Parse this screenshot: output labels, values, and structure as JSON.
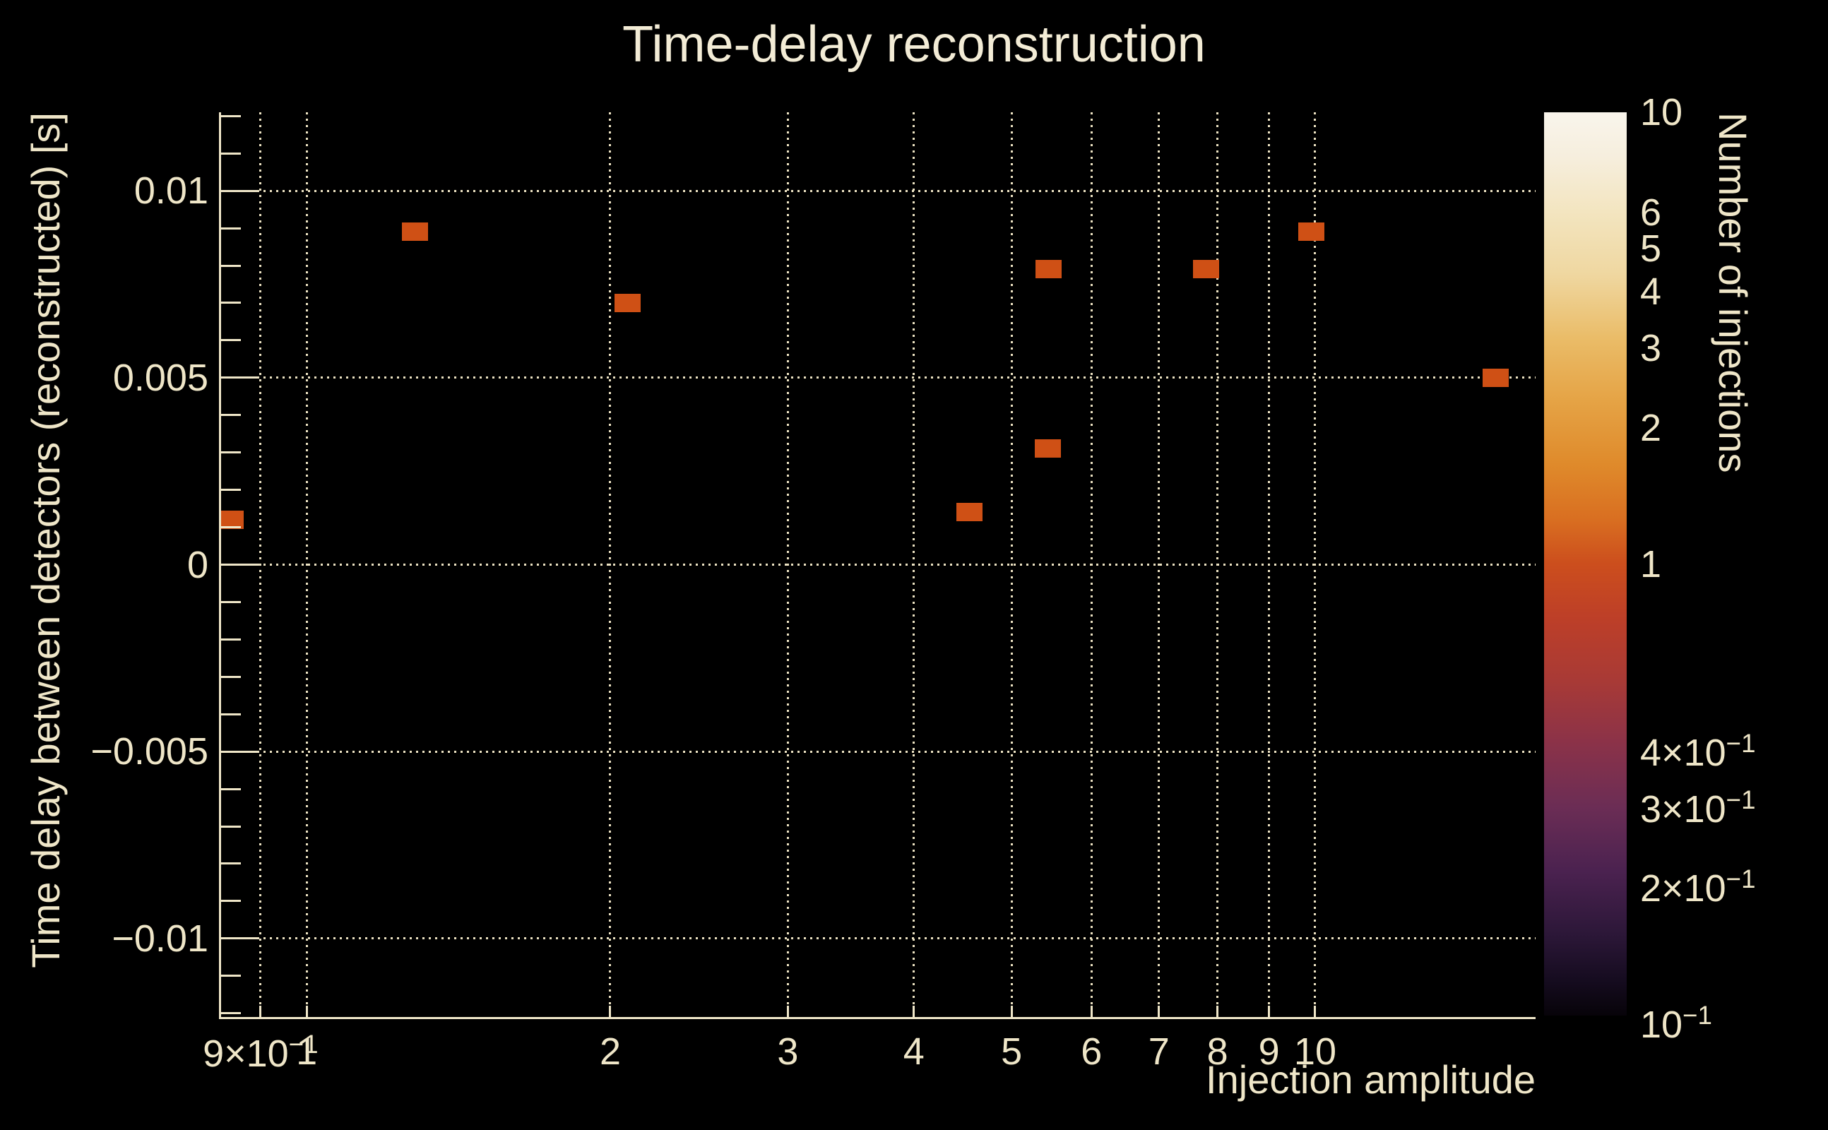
{
  "title": "Time-delay reconstruction",
  "colors": {
    "background": "#000000",
    "text": "#efe6c8",
    "title_text": "#f3ecd6",
    "grid": "#ece2c2",
    "axis": "#efe6c8",
    "bin_fill": "#cf5015",
    "colorbar_tick": "#000000"
  },
  "chart_data": {
    "type": "heatmap",
    "title": "Time-delay reconstruction",
    "xlabel": "Injection amplitude",
    "ylabel": "Time delay between detectors (reconstructed) [s]",
    "zlabel": "Number of injections",
    "x_scale": "log",
    "x_range": [
      0.8185,
      16.54
    ],
    "y_scale": "linear",
    "y_range": [
      -0.0121,
      0.0121
    ],
    "z_scale": "log",
    "z_range": [
      0.1,
      10
    ],
    "grid": true,
    "grid_style": "dotted",
    "legend_position": "right-colorbar",
    "x_ticks": [
      {
        "v": 0.9,
        "t": "9×10",
        "s": "−1"
      },
      {
        "v": 1,
        "t": "1"
      },
      {
        "v": 2,
        "t": "2"
      },
      {
        "v": 3,
        "t": "3"
      },
      {
        "v": 4,
        "t": "4"
      },
      {
        "v": 5,
        "t": "5"
      },
      {
        "v": 6,
        "t": "6"
      },
      {
        "v": 7,
        "t": "7"
      },
      {
        "v": 8,
        "t": "8"
      },
      {
        "v": 9,
        "t": "9"
      },
      {
        "v": 10,
        "t": "10"
      }
    ],
    "y_ticks": [
      {
        "v": 0.01,
        "t": "0.01"
      },
      {
        "v": 0.005,
        "t": "0.005"
      },
      {
        "v": 0,
        "t": "0"
      },
      {
        "v": -0.005,
        "t": "−0.005"
      },
      {
        "v": -0.01,
        "t": "−0.01"
      }
    ],
    "y_minor_tick_step": 0.001,
    "z_tick_labels": [
      {
        "v": 10,
        "t": "10"
      },
      {
        "v": 6,
        "t": "6"
      },
      {
        "v": 5,
        "t": "5"
      },
      {
        "v": 4,
        "t": "4"
      },
      {
        "v": 3,
        "t": "3"
      },
      {
        "v": 2,
        "t": "2"
      },
      {
        "v": 1,
        "t": "1"
      },
      {
        "v": 0.4,
        "t": "4×10",
        "s": "−1"
      },
      {
        "v": 0.3,
        "t": "3×10",
        "s": "−1"
      },
      {
        "v": 0.2,
        "t": "2×10",
        "s": "−1"
      },
      {
        "v": 0.1,
        "t": "10",
        "s": "−1"
      }
    ],
    "z_minor_ticks": [
      9,
      8,
      7,
      6,
      5,
      4,
      3,
      2,
      0.9,
      0.8,
      0.7,
      0.6,
      0.5,
      0.4,
      0.3,
      0.2
    ],
    "z_major_ticks": [
      10,
      1,
      0.1
    ],
    "points": [
      {
        "x": 0.84,
        "y": 0.0012,
        "n": 1
      },
      {
        "x": 1.28,
        "y": 0.0089,
        "n": 1
      },
      {
        "x": 2.08,
        "y": 0.007,
        "n": 1
      },
      {
        "x": 4.54,
        "y": 0.0014,
        "n": 1
      },
      {
        "x": 5.43,
        "y": 0.0031,
        "n": 1
      },
      {
        "x": 5.44,
        "y": 0.0079,
        "n": 1
      },
      {
        "x": 7.8,
        "y": 0.0079,
        "n": 1
      },
      {
        "x": 9.92,
        "y": 0.0089,
        "n": 1
      },
      {
        "x": 15.1,
        "y": 0.005,
        "n": 1
      }
    ],
    "palette_stops": [
      [
        0.0,
        "#f9f5ec"
      ],
      [
        0.05,
        "#f6eedd"
      ],
      [
        0.11,
        "#f3e5c0"
      ],
      [
        0.18,
        "#efd7a0"
      ],
      [
        0.25,
        "#eabc68"
      ],
      [
        0.32,
        "#e5a345"
      ],
      [
        0.39,
        "#df8a2b"
      ],
      [
        0.45,
        "#d96f21"
      ],
      [
        0.5,
        "#cc4e1d"
      ],
      [
        0.56,
        "#bd3f28"
      ],
      [
        0.63,
        "#a83a36"
      ],
      [
        0.7,
        "#8a3249"
      ],
      [
        0.77,
        "#6b2d55"
      ],
      [
        0.84,
        "#4b2250"
      ],
      [
        0.91,
        "#2c1738"
      ],
      [
        0.96,
        "#160c20"
      ],
      [
        1.0,
        "#070309"
      ]
    ]
  }
}
